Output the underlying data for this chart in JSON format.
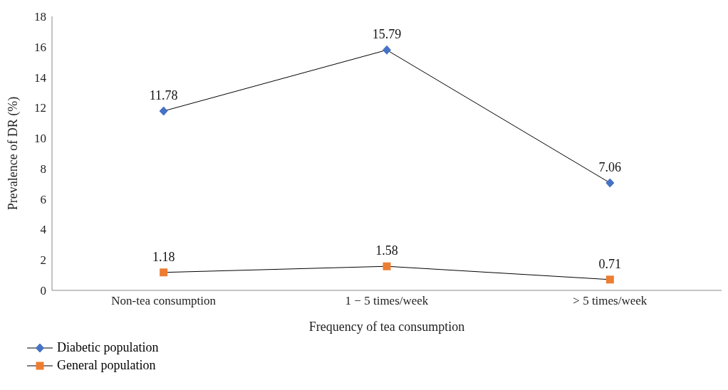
{
  "chart_data": {
    "type": "line",
    "xlabel": "Frequency of tea consumption",
    "ylabel": "Prevalence of DR (%)",
    "categories": [
      "Non-tea consumption",
      "1 − 5 times/week",
      "> 5 times/week"
    ],
    "series": [
      {
        "name": "Diabetic population",
        "color": "#4472c4",
        "marker": "diamond",
        "values": [
          11.78,
          15.79,
          7.06
        ]
      },
      {
        "name": "General population",
        "color": "#ed7d31",
        "marker": "square",
        "values": [
          1.18,
          1.58,
          0.71
        ]
      }
    ],
    "ylim": [
      0,
      18
    ],
    "yticks": [
      0,
      2,
      4,
      6,
      8,
      10,
      12,
      14,
      16,
      18
    ],
    "legend": "bottom",
    "data_labels": true,
    "line_style": "solid"
  }
}
